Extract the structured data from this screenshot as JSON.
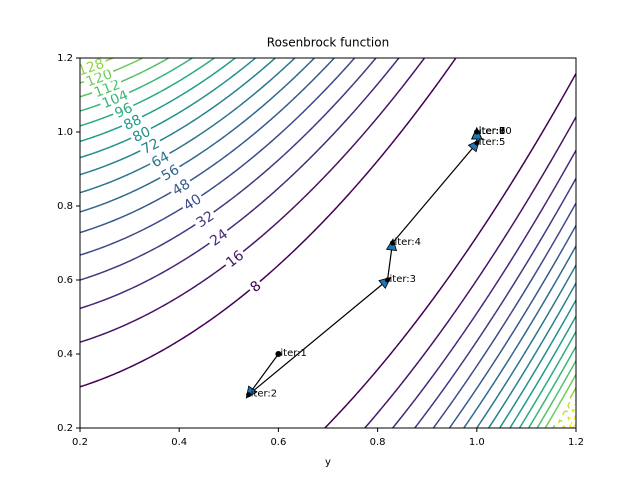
{
  "chart_data": {
    "type": "contour",
    "title": "Rosenbrock function",
    "x_label": "y",
    "xlim": [
      0.2,
      1.2
    ],
    "ylim": [
      0.2,
      1.2
    ],
    "xticks": [
      0.2,
      0.4,
      0.6,
      0.8,
      {
        "value": 1,
        "label": "1.0"
      },
      1.2
    ],
    "yticks": [
      0.2,
      0.4,
      0.6,
      0.8,
      {
        "value": 1,
        "label": "1.0"
      },
      1.2
    ],
    "colormap": "viridis",
    "levels": [
      8,
      16,
      24,
      32,
      40,
      48,
      56,
      64,
      72,
      80,
      88,
      96,
      104,
      112,
      120,
      128,
      136,
      144,
      152
    ],
    "series": [
      {
        "x": [
          0.6,
          0.54,
          0.82,
          0.83,
          1.0,
          1.0,
          1.0,
          1.0,
          1.0,
          1.0
        ],
        "y": [
          0.4,
          0.29,
          0.6,
          0.7,
          0.97,
          1.0,
          1.0,
          1.0,
          1.0,
          1.0
        ],
        "point_labels": [
          "iter:1",
          "iter:2",
          "iter:3",
          "iter:4",
          "iter:5",
          "iter:6",
          "iter:7",
          "iter:8",
          "iter:9",
          "iter:10"
        ],
        "color": "#1f77b4"
      }
    ]
  }
}
